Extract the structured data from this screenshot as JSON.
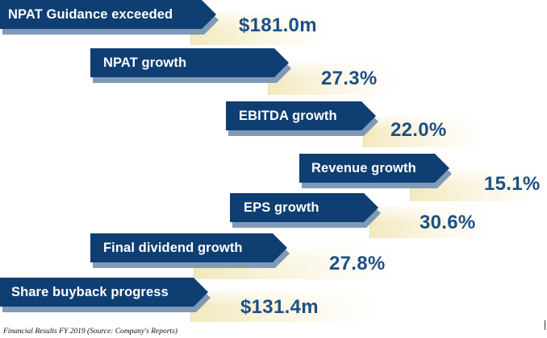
{
  "rows": [
    {
      "label": "NPAT Guidance exceeded",
      "value": "$181.0m"
    },
    {
      "label": "NPAT growth",
      "value": "27.3%"
    },
    {
      "label": "EBITDA growth",
      "value": "22.0%"
    },
    {
      "label": "Revenue growth",
      "value": "15.1%"
    },
    {
      "label": "EPS growth",
      "value": "30.6%"
    },
    {
      "label": "Final dividend growth",
      "value": "27.8%"
    },
    {
      "label": "Share buyback progress",
      "value": "$131.4m"
    }
  ],
  "caption": "Financial Results FY 2019 (Source: Company's Reports)",
  "colors": {
    "ribbon": "#0f3e72",
    "ribbon_shadow": "#7f9ab8",
    "value_text": "#1d4f86",
    "value_bg_left": "#f5edc4",
    "value_bg_right": "#ffffff"
  }
}
